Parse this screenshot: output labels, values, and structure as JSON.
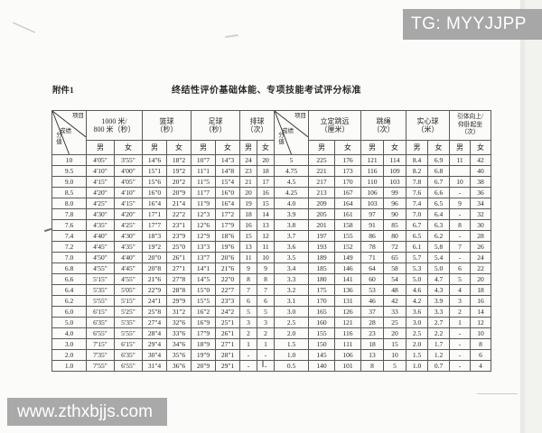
{
  "overlays": {
    "tg_banner": "TG: MYYJJPP",
    "watermark": "www.zthxbjjs.com"
  },
  "document": {
    "attachment_label": "附件1",
    "title": "终结性评价基础体能、专项技能考试评分标准"
  },
  "table": {
    "corner": {
      "item": "项目",
      "score": "成绩",
      "points": "分值"
    },
    "gender_male": "男",
    "gender_female": "女",
    "groups": [
      {
        "lines": [
          "1000 米/",
          "800 米（秒）"
        ]
      },
      {
        "lines": [
          "篮球",
          "（秒）"
        ]
      },
      {
        "lines": [
          "足球",
          "（秒）"
        ]
      },
      {
        "lines": [
          "排球",
          "（次）"
        ]
      },
      {
        "lines": [
          "立定跳远",
          "（厘米）"
        ]
      },
      {
        "lines": [
          "跳绳",
          "（次）"
        ]
      },
      {
        "lines": [
          "实心球",
          "（米）"
        ]
      },
      {
        "lines": [
          "引体向上/",
          "仰卧起坐",
          "（次）"
        ]
      }
    ],
    "rows": [
      [
        "10",
        "4'05\"",
        "3'55\"",
        "14\"6",
        "18\"2",
        "10\"7",
        "14\"3",
        "24",
        "20",
        "5",
        "225",
        "176",
        "121",
        "114",
        "8.4",
        "6.9",
        "11",
        "42"
      ],
      [
        "9.5",
        "4'10\"",
        "4'00\"",
        "15\"1",
        "19\"2",
        "11\"1",
        "14\"8",
        "23",
        "18",
        "4.75",
        "221",
        "173",
        "116",
        "109",
        "8.2",
        "6.8",
        "",
        "40"
      ],
      [
        "9.0",
        "4'15\"",
        "4'05\"",
        "15\"6",
        "20\"2",
        "11\"5",
        "15\"4",
        "21",
        "17",
        "4.5",
        "217",
        "170",
        "110",
        "103",
        "7.8",
        "6.7",
        "10",
        "38"
      ],
      [
        "8.5",
        "4'20\"",
        "4'10\"",
        "16\"0",
        "20\"9",
        "11\"7",
        "16\"0",
        "20",
        "16",
        "4.25",
        "213",
        "167",
        "106",
        "99",
        "7.6",
        "6.6",
        "-",
        "36"
      ],
      [
        "8.0",
        "4'25\"",
        "4'15\"",
        "16\"4",
        "21\"4",
        "11\"9",
        "16\"4",
        "19",
        "15",
        "4.0",
        "209",
        "164",
        "103",
        "96",
        "7.4",
        "6.5",
        "9",
        "34"
      ],
      [
        "7.8",
        "4'30\"",
        "4'20\"",
        "17\"1",
        "22\"2",
        "12\"3",
        "17\"2",
        "18",
        "14",
        "3.9",
        "205",
        "161",
        "97",
        "90",
        "7.0",
        "6.4",
        "-",
        "32"
      ],
      [
        "7.6",
        "4'35\"",
        "4'25\"",
        "17\"7",
        "23\"1",
        "12\"6",
        "17\"9",
        "16",
        "13",
        "3.8",
        "201",
        "158",
        "91",
        "85",
        "6.7",
        "6.3",
        "8",
        "30"
      ],
      [
        "7.4",
        "4'40\"",
        "4'30\"",
        "18\"3",
        "23\"9",
        "12\"9",
        "18\"6",
        "15",
        "12",
        "3.7",
        "197",
        "155",
        "86",
        "80",
        "6.5",
        "6.2",
        "-",
        "28"
      ],
      [
        "7.2",
        "4'45\"",
        "4'35\"",
        "19\"2",
        "25\"0",
        "13\"3",
        "19\"6",
        "13",
        "11",
        "3.6",
        "193",
        "152",
        "78",
        "72",
        "6.1",
        "5.8",
        "7",
        "26"
      ],
      [
        "7.0",
        "4'50\"",
        "4'40\"",
        "20\"0",
        "26\"1",
        "13\"7",
        "20\"6",
        "11",
        "10",
        "3.5",
        "189",
        "149",
        "71",
        "65",
        "5.7",
        "5.4",
        "-",
        "24"
      ],
      [
        "6.8",
        "4'55\"",
        "4'45\"",
        "20\"8",
        "27\"1",
        "14\"1",
        "21\"6",
        "9",
        "9",
        "3.4",
        "185",
        "146",
        "64",
        "58",
        "5.3",
        "5.0",
        "6",
        "22"
      ],
      [
        "6.6",
        "5'15\"",
        "4'55\"",
        "21\"6",
        "27\"8",
        "14\"5",
        "22\"0",
        "8",
        "8",
        "3.3",
        "180",
        "141",
        "60",
        "54",
        "5.0",
        "4.7",
        "5",
        "20"
      ],
      [
        "6.4",
        "5'35\"",
        "5'05\"",
        "22\"9",
        "28\"8",
        "15\"0",
        "22\"7",
        "7",
        "7",
        "3.2",
        "175",
        "136",
        "53",
        "48",
        "4.6",
        "4.3",
        "4",
        "18"
      ],
      [
        "6.2",
        "5'55\"",
        "5'15\"",
        "24\"1",
        "29\"9",
        "15\"5",
        "23\"3",
        "6",
        "6",
        "3.1",
        "170",
        "131",
        "46",
        "42",
        "4.2",
        "3.9",
        "3",
        "16"
      ],
      [
        "6.0",
        "6'15\"",
        "5'25\"",
        "25\"8",
        "31\"2",
        "16\"2",
        "24\"2",
        "5",
        "5",
        "3.0",
        "165",
        "126",
        "37",
        "33",
        "3.6",
        "3.3",
        "2",
        "14"
      ],
      [
        "5.0",
        "6'35\"",
        "5'35\"",
        "27\"4",
        "32\"6",
        "16\"9",
        "25\"1",
        "3",
        "3",
        "2.5",
        "160",
        "121",
        "28",
        "25",
        "3.0",
        "2.7",
        "1",
        "12"
      ],
      [
        "4.0",
        "6'55\"",
        "5'55\"",
        "28\"4",
        "33\"6",
        "17\"9",
        "26\"1",
        "2",
        "2",
        "2.0",
        "155",
        "116",
        "23",
        "20",
        "2.5",
        "2.2",
        "-",
        "10"
      ],
      [
        "3.0",
        "7'15\"",
        "6'15\"",
        "29\"4",
        "34\"6",
        "18\"9",
        "27\"1",
        "1",
        "1",
        "1.5",
        "150",
        "111",
        "18",
        "15",
        "2.0",
        "1.7",
        "-",
        "8"
      ],
      [
        "2.0",
        "7'35\"",
        "6'35\"",
        "30\"4",
        "35\"6",
        "19\"9",
        "28\"1",
        "-",
        "-",
        "1.0",
        "145",
        "106",
        "13",
        "10",
        "1.5",
        "1.2",
        "-",
        "6"
      ],
      [
        "1.0",
        "7'55\"",
        "6'55\"",
        "31\"4",
        "36\"6",
        "20\"9",
        "29\"1",
        "-",
        "-",
        "0.5",
        "140",
        "101",
        "8",
        "5",
        "1.0",
        "0.7",
        "-",
        "4"
      ]
    ]
  }
}
